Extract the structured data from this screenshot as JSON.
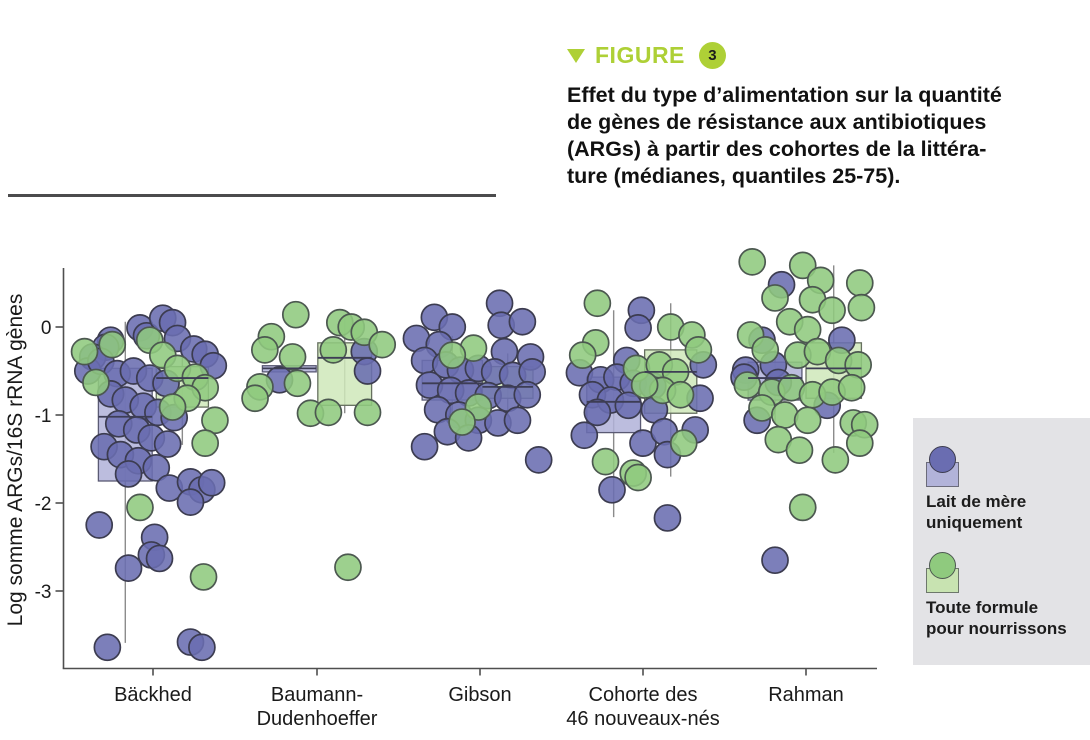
{
  "figure": {
    "triangle_icon": "down-triangle",
    "label": "FIGURE",
    "number": "3",
    "accent_color": "#aed036",
    "caption_lines": [
      "Effet du type d’alimentation sur la quantité",
      "de gènes de résistance aux antibiotiques",
      "(ARGs) à partir des cohortes de la littéra-",
      "ture (médianes, quantiles 25-75)."
    ]
  },
  "legend": {
    "background": "#e3e3e6",
    "items": [
      {
        "label_lines": [
          "Lait de mère",
          "uniquement"
        ],
        "circle_color": "#6a6db1",
        "circle_stroke": "#3c3c50",
        "box_color": "#b2b3d9",
        "box_stroke": "#6b6b7a"
      },
      {
        "label_lines": [
          "Toute formule",
          "pour nourrissons"
        ],
        "circle_color": "#8fca7e",
        "circle_stroke": "#4c5850",
        "box_color": "#c8e3b1",
        "box_stroke": "#6d776b"
      }
    ]
  },
  "chart_data": {
    "type": "scatter",
    "variant": "jittered-strip-with-boxplots-median-quartiles",
    "title": "Effet du type d’alimentation sur la quantité de gènes de résistance aux antibiotiques (ARGs) à partir des cohortes de la littérature (médianes, quantiles 25-75).",
    "ylabel": "Log somme ARGs/16S rRNA gènes",
    "yticks": [
      0,
      -1,
      -2,
      -3
    ],
    "ylim": [
      -3.85,
      0.85
    ],
    "grid": false,
    "legend_position": "right",
    "categories": [
      [
        "Bäckhed"
      ],
      [
        "Baumann-",
        "Dudenhoeffer"
      ],
      [
        "Gibson"
      ],
      [
        "Cohorte des",
        "46 nouveaux-nés"
      ],
      [
        "Rahman"
      ]
    ],
    "series": [
      {
        "name": "Lait de mère uniquement",
        "point_color": "#6a6db1",
        "point_stroke": "#3c3c50",
        "box_fill": "#b0b1d8",
        "box_stroke": "#5a5a74",
        "boxes": [
          {
            "dx": -0.17,
            "width": 0.33,
            "q3": -0.47,
            "median": -1.02,
            "q1": -1.75,
            "whisker_high": 0.06,
            "whisker_low": -3.59
          },
          {
            "dx": -0.17,
            "width": 0.33,
            "q3": -0.44,
            "median": -0.47,
            "q1": -0.51,
            "whisker_high": null,
            "whisker_low": null
          },
          {
            "dx": -0.17,
            "width": 0.37,
            "q3": -0.38,
            "median": -0.64,
            "q1": -0.83,
            "whisker_high": -0.1,
            "whisker_low": -1.06
          },
          {
            "dx": -0.18,
            "width": 0.33,
            "q3": -0.57,
            "median": -0.85,
            "q1": -1.2,
            "whisker_high": 0.19,
            "whisker_low": -2.16
          },
          {
            "dx": -0.19,
            "width": 0.33,
            "q3": -0.4,
            "median": -0.58,
            "q1": -0.83,
            "whisker_high": -0.26,
            "whisker_low": -1.09
          }
        ],
        "points": [
          [
            [
              -0.26,
              -0.15
            ],
            [
              -0.29,
              -0.23
            ],
            [
              -0.08,
              -0.01
            ],
            [
              -0.04,
              -0.1
            ],
            [
              0.06,
              0.1
            ],
            [
              0.12,
              0.05
            ],
            [
              0.15,
              -0.13
            ],
            [
              0.25,
              -0.25
            ],
            [
              0.32,
              -0.31
            ],
            [
              0.37,
              -0.44
            ],
            [
              -0.37,
              -0.34
            ],
            [
              -0.4,
              -0.5
            ],
            [
              -0.32,
              -0.39
            ],
            [
              -0.22,
              -0.53
            ],
            [
              -0.12,
              -0.5
            ],
            [
              -0.02,
              -0.58
            ],
            [
              0.08,
              -0.64
            ],
            [
              -0.26,
              -0.76
            ],
            [
              -0.17,
              -0.83
            ],
            [
              -0.06,
              -0.9
            ],
            [
              0.03,
              -0.97
            ],
            [
              0.13,
              -1.03
            ],
            [
              -0.21,
              -1.1
            ],
            [
              -0.1,
              -1.17
            ],
            [
              -0.01,
              -1.26
            ],
            [
              0.09,
              -1.33
            ],
            [
              -0.3,
              -1.36
            ],
            [
              -0.2,
              -1.45
            ],
            [
              -0.09,
              -1.52
            ],
            [
              0.02,
              -1.6
            ],
            [
              -0.15,
              -1.67
            ],
            [
              0.1,
              -1.83
            ],
            [
              0.23,
              -1.76
            ],
            [
              0.3,
              -1.85
            ],
            [
              0.23,
              -1.99
            ],
            [
              0.36,
              -1.77
            ],
            [
              -0.33,
              -2.25
            ],
            [
              0.01,
              -2.39
            ],
            [
              -0.01,
              -2.59
            ],
            [
              0.04,
              -2.63
            ],
            [
              -0.15,
              -2.74
            ],
            [
              -0.28,
              -3.64
            ],
            [
              0.23,
              -3.58
            ],
            [
              0.3,
              -3.64
            ]
          ],
          [
            [
              -0.23,
              -0.6
            ],
            [
              0.29,
              -0.28
            ],
            [
              0.31,
              -0.5
            ]
          ],
          [
            [
              -0.28,
              0.11
            ],
            [
              -0.17,
              0.0
            ],
            [
              0.12,
              0.27
            ],
            [
              0.13,
              0.02
            ],
            [
              0.26,
              0.06
            ],
            [
              -0.39,
              -0.13
            ],
            [
              -0.25,
              -0.2
            ],
            [
              0.15,
              -0.28
            ],
            [
              0.31,
              -0.34
            ],
            [
              -0.34,
              -0.38
            ],
            [
              -0.21,
              -0.43
            ],
            [
              -0.12,
              -0.49
            ],
            [
              -0.01,
              -0.47
            ],
            [
              0.09,
              -0.51
            ],
            [
              0.2,
              -0.55
            ],
            [
              0.32,
              -0.51
            ],
            [
              -0.31,
              -0.66
            ],
            [
              -0.18,
              -0.72
            ],
            [
              -0.07,
              -0.75
            ],
            [
              0.05,
              -0.78
            ],
            [
              0.17,
              -0.81
            ],
            [
              0.29,
              -0.77
            ],
            [
              -0.26,
              -0.94
            ],
            [
              -0.13,
              -1.0
            ],
            [
              -0.01,
              -1.06
            ],
            [
              0.11,
              -1.09
            ],
            [
              0.23,
              -1.06
            ],
            [
              -0.2,
              -1.19
            ],
            [
              -0.07,
              -1.26
            ],
            [
              -0.34,
              -1.36
            ],
            [
              0.36,
              -1.51
            ]
          ],
          [
            [
              -0.01,
              0.19
            ],
            [
              -0.03,
              -0.01
            ],
            [
              -0.1,
              -0.38
            ],
            [
              0.37,
              -0.43
            ],
            [
              -0.39,
              -0.52
            ],
            [
              -0.26,
              -0.6
            ],
            [
              -0.16,
              -0.57
            ],
            [
              -0.06,
              -0.64
            ],
            [
              0.06,
              -0.67
            ],
            [
              -0.31,
              -0.77
            ],
            [
              -0.2,
              -0.83
            ],
            [
              -0.09,
              -0.89
            ],
            [
              0.35,
              -0.81
            ],
            [
              -0.28,
              -0.97
            ],
            [
              0.07,
              -0.94
            ],
            [
              -0.36,
              -1.23
            ],
            [
              0.0,
              -1.32
            ],
            [
              0.13,
              -1.19
            ],
            [
              0.32,
              -1.17
            ],
            [
              0.15,
              -1.45
            ],
            [
              -0.19,
              -1.85
            ],
            [
              0.15,
              -2.17
            ]
          ],
          [
            [
              -0.15,
              0.48
            ],
            [
              -0.27,
              -0.15
            ],
            [
              0.22,
              -0.15
            ],
            [
              -0.37,
              -0.49
            ],
            [
              -0.2,
              -0.43
            ],
            [
              -0.38,
              -0.57
            ],
            [
              -0.17,
              -0.63
            ],
            [
              0.13,
              -0.89
            ],
            [
              -0.3,
              -1.06
            ],
            [
              -0.19,
              -2.65
            ]
          ]
        ]
      },
      {
        "name": "Toute formule pour nourrissons",
        "point_color": "#8fca7e",
        "point_stroke": "#4c5850",
        "box_fill": "#cfe7ba",
        "box_stroke": "#66705f",
        "boxes": [
          {
            "dx": 0.18,
            "width": 0.32,
            "q3": -0.45,
            "median": -0.58,
            "q1": -0.91,
            "whisker_high": -0.26,
            "whisker_low": -1.34
          },
          {
            "dx": 0.17,
            "width": 0.33,
            "q3": -0.18,
            "median": -0.35,
            "q1": -0.89,
            "whisker_high": 0.11,
            "whisker_low": -0.98
          },
          {
            "dx": 0.17,
            "width": 0.31,
            "q3": -0.45,
            "median": -0.68,
            "q1": -0.81,
            "whisker_high": -0.3,
            "whisker_low": -1.09
          },
          {
            "dx": 0.17,
            "width": 0.32,
            "q3": -0.26,
            "median": -0.51,
            "q1": -0.98,
            "whisker_high": 0.27,
            "whisker_low": -1.7
          },
          {
            "dx": 0.17,
            "width": 0.34,
            "q3": -0.18,
            "median": -0.47,
            "q1": -0.81,
            "whisker_high": 0.7,
            "whisker_low": -1.43
          }
        ],
        "points": [
          [
            [
              -0.25,
              -0.2
            ],
            [
              -0.02,
              -0.15
            ],
            [
              -0.42,
              -0.28
            ],
            [
              -0.35,
              -0.63
            ],
            [
              0.06,
              -0.32
            ],
            [
              0.15,
              -0.47
            ],
            [
              0.26,
              -0.57
            ],
            [
              0.32,
              -0.69
            ],
            [
              0.21,
              -0.81
            ],
            [
              0.12,
              -0.91
            ],
            [
              0.38,
              -1.06
            ],
            [
              0.32,
              -1.32
            ],
            [
              -0.08,
              -2.05
            ],
            [
              0.31,
              -2.84
            ]
          ],
          [
            [
              -0.13,
              0.14
            ],
            [
              0.14,
              0.05
            ],
            [
              0.21,
              0.0
            ],
            [
              0.29,
              -0.06
            ],
            [
              -0.28,
              -0.11
            ],
            [
              -0.32,
              -0.26
            ],
            [
              -0.15,
              -0.34
            ],
            [
              0.1,
              -0.26
            ],
            [
              -0.35,
              -0.68
            ],
            [
              -0.38,
              -0.81
            ],
            [
              -0.12,
              -0.64
            ],
            [
              -0.04,
              -0.98
            ],
            [
              0.07,
              -0.97
            ],
            [
              0.31,
              -0.97
            ],
            [
              0.4,
              -0.2
            ],
            [
              0.19,
              -2.73
            ]
          ],
          [
            [
              -0.04,
              -0.24
            ],
            [
              -0.17,
              -0.32
            ],
            [
              -0.01,
              -0.91
            ],
            [
              -0.11,
              -1.08
            ]
          ],
          [
            [
              -0.28,
              0.27
            ],
            [
              0.17,
              0.0
            ],
            [
              0.3,
              -0.09
            ],
            [
              -0.29,
              -0.18
            ],
            [
              -0.37,
              -0.32
            ],
            [
              -0.04,
              -0.47
            ],
            [
              0.34,
              -0.26
            ],
            [
              0.1,
              -0.43
            ],
            [
              0.2,
              -0.51
            ],
            [
              0.12,
              -0.72
            ],
            [
              0.23,
              -0.77
            ],
            [
              0.01,
              -0.66
            ],
            [
              0.25,
              -1.32
            ],
            [
              -0.23,
              -1.53
            ],
            [
              -0.06,
              -1.66
            ],
            [
              -0.03,
              -1.71
            ]
          ],
          [
            [
              -0.33,
              0.74
            ],
            [
              -0.02,
              0.7
            ],
            [
              0.09,
              0.53
            ],
            [
              0.33,
              0.5
            ],
            [
              -0.19,
              0.33
            ],
            [
              0.04,
              0.31
            ],
            [
              0.16,
              0.19
            ],
            [
              0.34,
              0.22
            ],
            [
              -0.34,
              -0.09
            ],
            [
              -0.1,
              0.06
            ],
            [
              0.01,
              -0.03
            ],
            [
              -0.25,
              -0.26
            ],
            [
              -0.05,
              -0.32
            ],
            [
              0.07,
              -0.28
            ],
            [
              0.2,
              -0.38
            ],
            [
              0.32,
              -0.43
            ],
            [
              -0.36,
              -0.66
            ],
            [
              -0.21,
              -0.74
            ],
            [
              -0.09,
              -0.69
            ],
            [
              0.04,
              -0.77
            ],
            [
              0.16,
              -0.74
            ],
            [
              0.28,
              -0.69
            ],
            [
              -0.27,
              -0.92
            ],
            [
              -0.13,
              -1.0
            ],
            [
              0.01,
              -1.06
            ],
            [
              0.29,
              -1.09
            ],
            [
              0.36,
              -1.11
            ],
            [
              0.33,
              -1.32
            ],
            [
              -0.17,
              -1.28
            ],
            [
              -0.04,
              -1.4
            ],
            [
              0.18,
              -1.51
            ],
            [
              -0.02,
              -2.05
            ]
          ]
        ]
      }
    ]
  }
}
